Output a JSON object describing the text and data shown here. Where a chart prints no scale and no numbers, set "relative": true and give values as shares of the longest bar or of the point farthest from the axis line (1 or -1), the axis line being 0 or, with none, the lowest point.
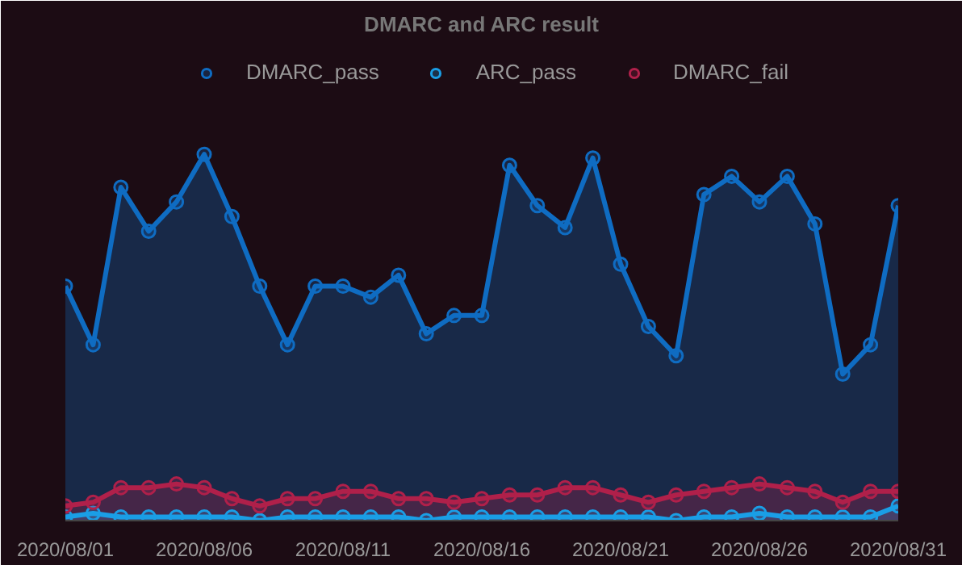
{
  "chart_data": {
    "type": "area",
    "title": "DMARC and ARC result",
    "relative": true,
    "legend": "top",
    "marker": "circle",
    "x": [
      "2020-08-01",
      "2020-08-02",
      "2020-08-03",
      "2020-08-04",
      "2020-08-05",
      "2020-08-06",
      "2020-08-07",
      "2020-08-08",
      "2020-08-09",
      "2020-08-10",
      "2020-08-11",
      "2020-08-12",
      "2020-08-13",
      "2020-08-14",
      "2020-08-15",
      "2020-08-16",
      "2020-08-17",
      "2020-08-18",
      "2020-08-19",
      "2020-08-20",
      "2020-08-21",
      "2020-08-22",
      "2020-08-23",
      "2020-08-24",
      "2020-08-25",
      "2020-08-26",
      "2020-08-27",
      "2020-08-28",
      "2020-08-29",
      "2020-08-30",
      "2020-08-31"
    ],
    "xlim": [
      "2020-08-01",
      "2020-08-31"
    ],
    "xticks": [
      {
        "value": "2020-08-01",
        "label": "2020/08/01"
      },
      {
        "value": "2020-08-06",
        "label": "2020/08/06"
      },
      {
        "value": "2020-08-11",
        "label": "2020/08/11"
      },
      {
        "value": "2020-08-16",
        "label": "2020/08/16"
      },
      {
        "value": "2020-08-21",
        "label": "2020/08/21"
      },
      {
        "value": "2020-08-26",
        "label": "2020/08/26"
      },
      {
        "value": "2020-08-31",
        "label": "2020/08/31"
      }
    ],
    "series": [
      {
        "name": "DMARC_pass",
        "color": "#0f6cc2",
        "values": [
          0.64,
          0.48,
          0.91,
          0.79,
          0.87,
          1.0,
          0.83,
          0.64,
          0.48,
          0.64,
          0.64,
          0.61,
          0.67,
          0.51,
          0.56,
          0.56,
          0.97,
          0.86,
          0.8,
          0.99,
          0.7,
          0.53,
          0.45,
          0.89,
          0.94,
          0.87,
          0.94,
          0.81,
          0.4,
          0.48,
          0.86
        ]
      },
      {
        "name": "ARC_pass",
        "color": "#1a9ee6",
        "values": [
          0.01,
          0.02,
          0.01,
          0.01,
          0.01,
          0.01,
          0.01,
          0.0,
          0.01,
          0.01,
          0.01,
          0.01,
          0.01,
          0.0,
          0.01,
          0.01,
          0.01,
          0.01,
          0.01,
          0.01,
          0.01,
          0.01,
          0.0,
          0.01,
          0.01,
          0.02,
          0.01,
          0.01,
          0.01,
          0.01,
          0.04
        ]
      },
      {
        "name": "DMARC_fail",
        "color": "#b0204a",
        "values": [
          0.04,
          0.05,
          0.09,
          0.09,
          0.1,
          0.09,
          0.06,
          0.04,
          0.06,
          0.06,
          0.08,
          0.08,
          0.06,
          0.06,
          0.05,
          0.06,
          0.07,
          0.07,
          0.09,
          0.09,
          0.07,
          0.05,
          0.07,
          0.08,
          0.09,
          0.1,
          0.09,
          0.08,
          0.05,
          0.08,
          0.08
        ]
      }
    ]
  }
}
